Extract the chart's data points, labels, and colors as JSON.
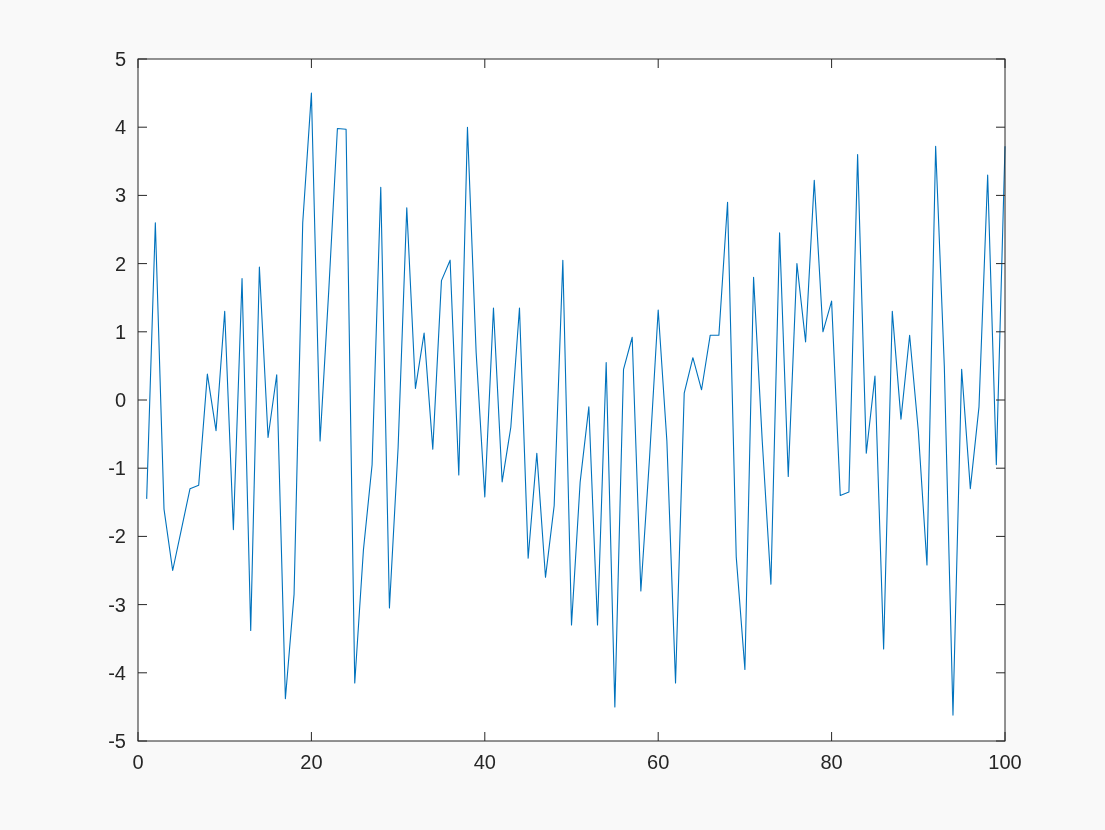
{
  "chart_data": {
    "type": "line",
    "x": [
      1,
      2,
      3,
      4,
      5,
      6,
      7,
      8,
      9,
      10,
      11,
      12,
      13,
      14,
      15,
      16,
      17,
      18,
      19,
      20,
      21,
      22,
      23,
      24,
      25,
      26,
      27,
      28,
      29,
      30,
      31,
      32,
      33,
      34,
      35,
      36,
      37,
      38,
      39,
      40,
      41,
      42,
      43,
      44,
      45,
      46,
      47,
      48,
      49,
      50,
      51,
      52,
      53,
      54,
      55,
      56,
      57,
      58,
      59,
      60,
      61,
      62,
      63,
      64,
      65,
      66,
      67,
      68,
      69,
      70,
      71,
      72,
      73,
      74,
      75,
      76,
      77,
      78,
      79,
      80,
      81,
      82,
      83,
      84,
      85,
      86,
      87,
      88,
      89,
      90,
      91,
      92,
      93,
      94,
      95,
      96,
      97,
      98,
      99,
      100
    ],
    "series": [
      {
        "color": "#0072bd",
        "values": [
          -1.45,
          2.6,
          -1.6,
          -2.5,
          -1.9,
          -1.3,
          -1.25,
          0.38,
          -0.45,
          1.3,
          -1.9,
          1.78,
          -3.38,
          1.95,
          -0.55,
          0.37,
          -4.38,
          -2.85,
          2.6,
          4.5,
          -0.6,
          1.6,
          3.98,
          3.97,
          -4.15,
          -2.2,
          -0.95,
          3.12,
          -3.05,
          -0.7,
          2.82,
          0.17,
          0.98,
          -0.72,
          1.75,
          2.05,
          -1.1,
          4.0,
          0.7,
          -1.42,
          1.35,
          -1.2,
          -0.4,
          1.35,
          -2.32,
          -0.78,
          -2.6,
          -1.55,
          2.05,
          -3.3,
          -1.2,
          -0.1,
          -3.3,
          0.55,
          -4.5,
          0.45,
          0.92,
          -2.8,
          -0.85,
          1.32,
          -0.6,
          -4.15,
          0.1,
          0.62,
          0.15,
          0.95,
          0.95,
          2.9,
          -2.3,
          -3.95,
          1.8,
          -0.6,
          -2.7,
          2.45,
          -1.12,
          2.0,
          0.85,
          3.22,
          1.0,
          1.45,
          -1.4,
          -1.35,
          3.6,
          -0.78,
          0.35,
          -3.65,
          1.3,
          -0.28,
          0.95,
          -0.45,
          -2.42,
          3.72,
          0.5,
          -4.62,
          0.45,
          -1.3,
          -0.1,
          3.3,
          -0.95,
          3.72
        ]
      }
    ],
    "xlim": [
      0,
      100
    ],
    "xticks": [
      0,
      20,
      40,
      60,
      80,
      100
    ],
    "ylim": [
      -5,
      5
    ],
    "yticks": [
      -5,
      -4,
      -3,
      -2,
      -1,
      0,
      1,
      2,
      3,
      4,
      5
    ],
    "grid": false,
    "marker": "none",
    "line_style": "solid"
  }
}
